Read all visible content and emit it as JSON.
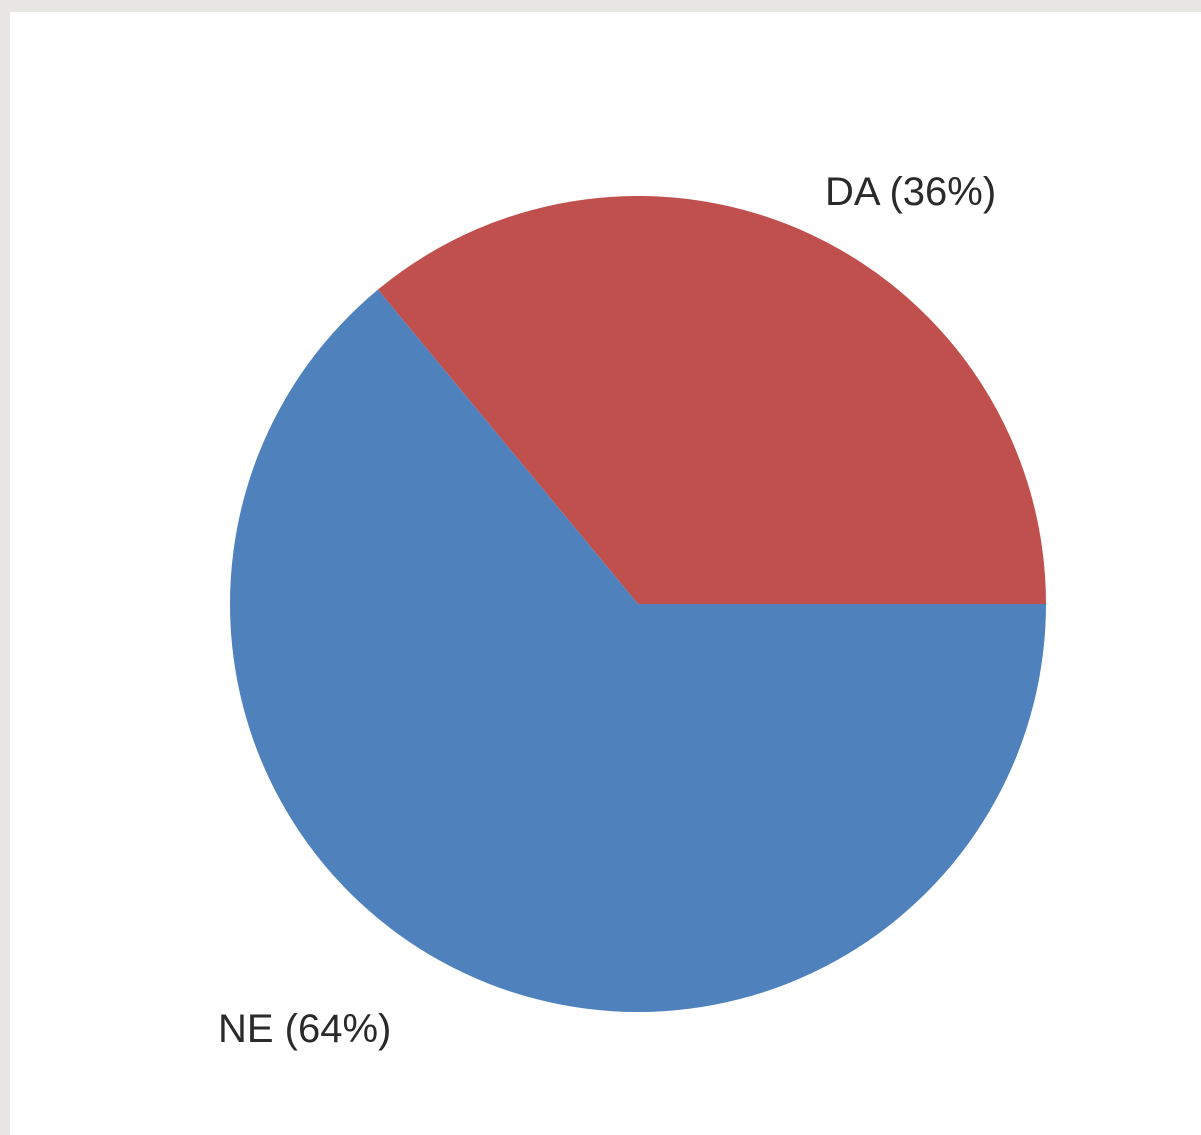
{
  "chart_data": {
    "type": "pie",
    "slices": [
      {
        "label": "DA",
        "value": 36,
        "display": "DA (36%)",
        "color": "#c0504d"
      },
      {
        "label": "NE",
        "value": 64,
        "display": "NE (64%)",
        "color": "#4f81bd"
      }
    ],
    "start": "3 o'clock",
    "direction": "counter-clockwise",
    "title": "",
    "legend": "none"
  }
}
